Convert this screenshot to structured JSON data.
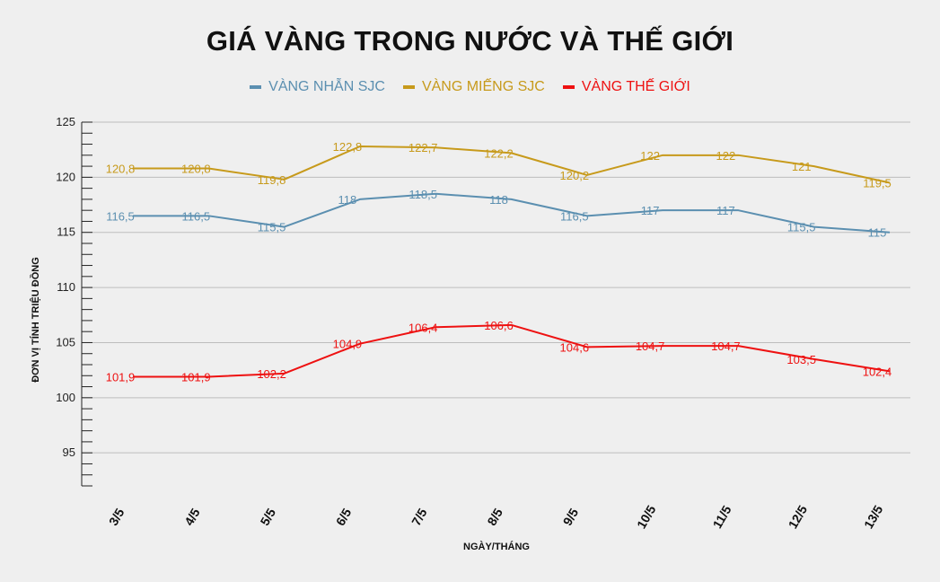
{
  "chart_data": {
    "type": "line",
    "title": "GIÁ VÀNG TRONG NƯỚC VÀ THẾ GIỚI",
    "xlabel": "NGÀY/THÁNG",
    "ylabel": "ĐƠN VỊ TÍNH TRIỆU ĐỒNG",
    "categories": [
      "3/5",
      "4/5",
      "5/5",
      "6/5",
      "7/5",
      "8/5",
      "9/5",
      "10/5",
      "11/5",
      "12/5",
      "13/5"
    ],
    "ylim": [
      92,
      125
    ],
    "yticks": [
      95,
      100,
      105,
      110,
      115,
      120,
      125
    ],
    "series": [
      {
        "name": "VÀNG NHẪN SJC",
        "color": "#5b8fb0",
        "values": [
          116.5,
          116.5,
          115.5,
          118,
          118.5,
          118,
          116.5,
          117,
          117,
          115.5,
          115
        ],
        "labels": [
          "116,5",
          "116,5",
          "115,5",
          "118",
          "118,5",
          "118",
          "116,5",
          "117",
          "117",
          "115,5",
          "115"
        ]
      },
      {
        "name": "VÀNG MIẾNG SJC",
        "color": "#c79a1b",
        "values": [
          120.8,
          120.8,
          119.8,
          122.8,
          122.7,
          122.2,
          120.2,
          122,
          122,
          121,
          119.5
        ],
        "labels": [
          "120,8",
          "120,8",
          "119,8",
          "122,8",
          "122,7",
          "122,2",
          "120,2",
          "122",
          "122",
          "121",
          "119,5"
        ]
      },
      {
        "name": "VÀNG THẾ GIỚI",
        "color": "#ee1111",
        "values": [
          101.9,
          101.9,
          102.2,
          104.9,
          106.4,
          106.6,
          104.6,
          104.7,
          104.7,
          103.5,
          102.4
        ],
        "labels": [
          "101,9",
          "101,9",
          "102,2",
          "104,9",
          "106,4",
          "106,6",
          "104,6",
          "104,7",
          "104,7",
          "103,5",
          "102,4"
        ]
      }
    ]
  }
}
